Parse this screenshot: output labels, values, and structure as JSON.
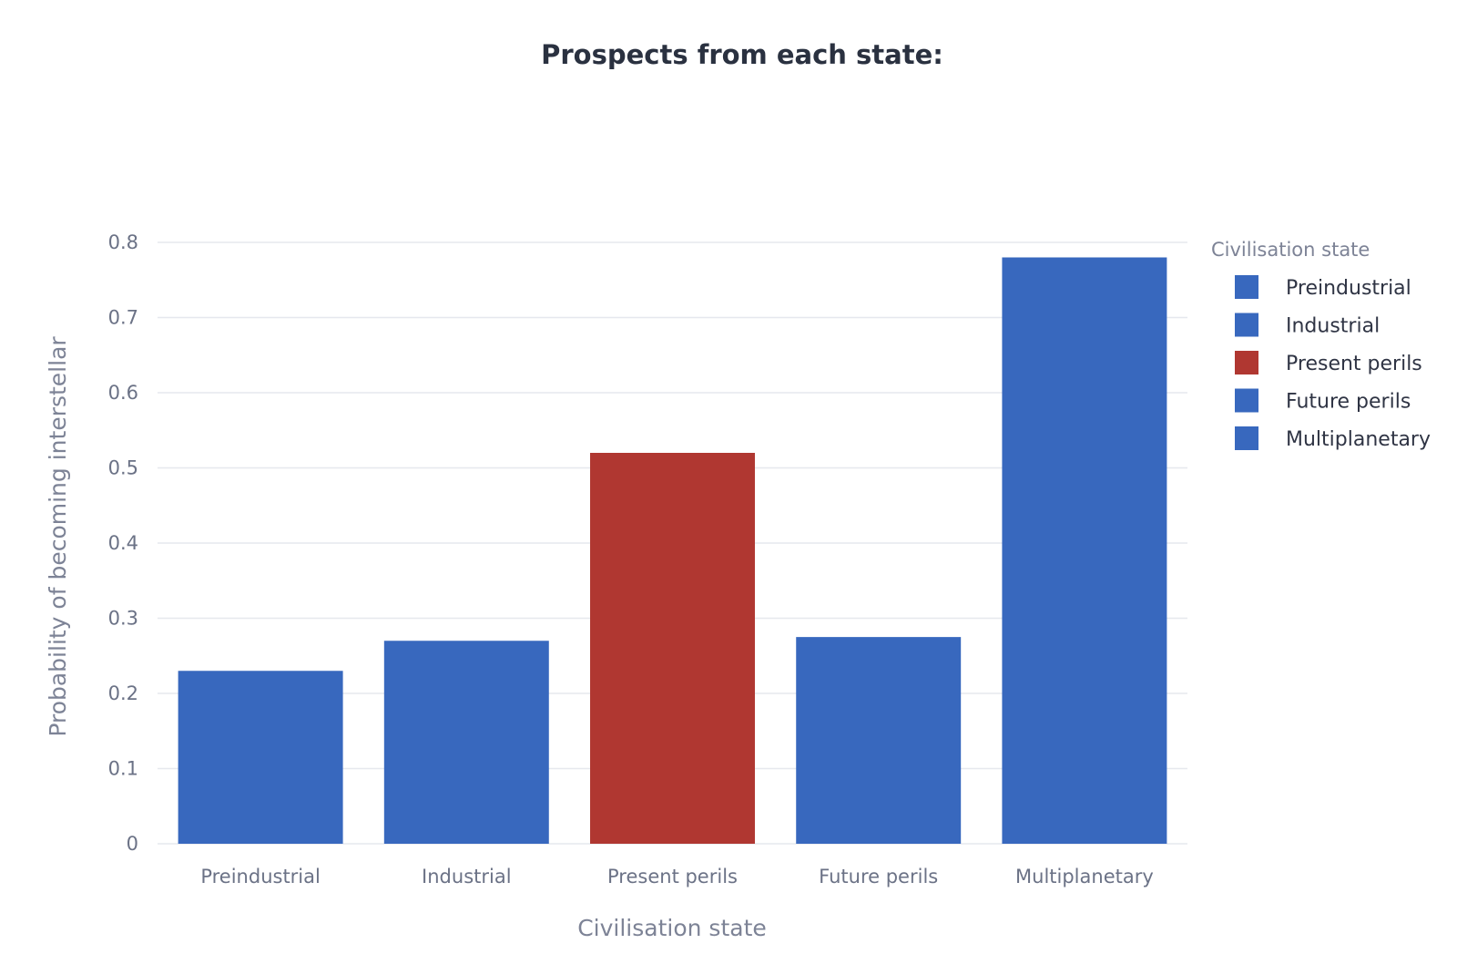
{
  "chart_data": {
    "type": "bar",
    "title": "Prospects from each state:",
    "xlabel": "Civilisation state",
    "ylabel": "Probability of becoming interstellar",
    "categories": [
      "Preindustrial",
      "Industrial",
      "Present perils",
      "Future perils",
      "Multiplanetary"
    ],
    "values": [
      0.23,
      0.27,
      0.52,
      0.275,
      0.78
    ],
    "colors": [
      "#3868be",
      "#3868be",
      "#b03731",
      "#3868be",
      "#3868be"
    ],
    "ylim": [
      0,
      0.8
    ],
    "yticks": [
      0,
      0.1,
      0.2,
      0.3,
      0.4,
      0.5,
      0.6,
      0.7,
      0.8
    ],
    "ytick_labels": [
      "0",
      "0.1",
      "0.2",
      "0.3",
      "0.4",
      "0.5",
      "0.6",
      "0.7",
      "0.8"
    ],
    "grid": true,
    "legend": {
      "title": "Civilisation state",
      "position": "right",
      "entries": [
        "Preindustrial",
        "Industrial",
        "Present perils",
        "Future perils",
        "Multiplanetary"
      ]
    }
  }
}
